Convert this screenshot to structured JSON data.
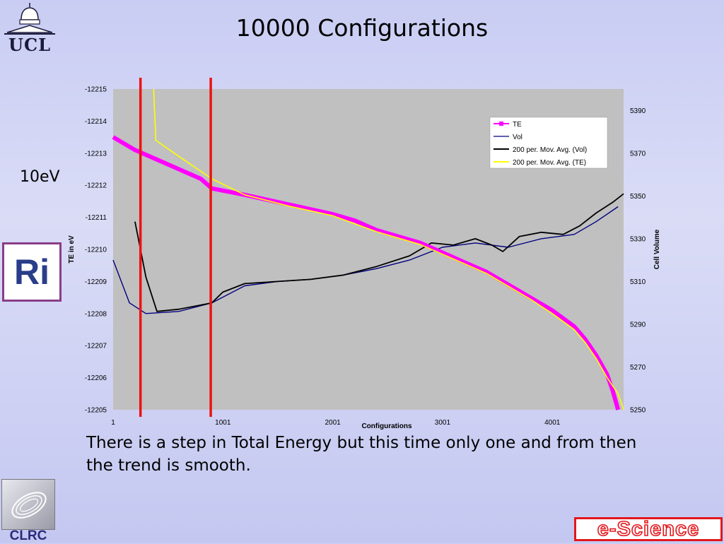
{
  "slide": {
    "title": "10000 Configurations",
    "side_label": "10eV",
    "caption": "There is a step in Total Energy but this time only one and from then the trend is smooth."
  },
  "logos": {
    "ucl": "UCL",
    "ri": "Ri",
    "clrc": "CLRC",
    "escience": "e-Science"
  },
  "colors": {
    "te": "#ff00ff",
    "vol": "#000080",
    "vol_avg": "#000000",
    "te_avg": "#ffff00",
    "marker_lines": "#ee1111",
    "plot_bg": "#c0c0c0"
  },
  "chart_data": {
    "type": "line",
    "title": "",
    "xlabel": "Configurations",
    "ylabel_left": "TE in eV",
    "ylabel_right": "Cell Volume",
    "x_ticks": [
      "1",
      "1001",
      "2001",
      "3001",
      "4001"
    ],
    "x_range": [
      1,
      4650
    ],
    "y_left_ticks": [
      "-12215",
      "-12214",
      "-12213",
      "-12212",
      "-12211",
      "-12210",
      "-12209",
      "-12208",
      "-12207",
      "-12206",
      "-12205"
    ],
    "y_left_range": [
      -12215,
      -12205
    ],
    "y_right_ticks": [
      "5390",
      "5370",
      "5350",
      "5330",
      "5310",
      "5290",
      "5270",
      "5250"
    ],
    "y_right_range": [
      5250,
      5400
    ],
    "legend_position": "top-right",
    "legend": [
      "TE",
      "Vol",
      "200 per. Mov. Avg. (Vol)",
      "200 per. Mov. Avg. (TE)"
    ],
    "vertical_markers_x": [
      250,
      890
    ],
    "series": [
      {
        "name": "TE",
        "axis": "left",
        "x": [
          1,
          100,
          200,
          400,
          600,
          800,
          900,
          1200,
          1600,
          2000,
          2200,
          2400,
          2800,
          3000,
          3200,
          3400,
          3600,
          3800,
          4000,
          4200,
          4300,
          4400,
          4500,
          4550,
          4600
        ],
        "y": [
          -12213.5,
          -12213.3,
          -12213.1,
          -12212.8,
          -12212.5,
          -12212.2,
          -12211.9,
          -12211.7,
          -12211.4,
          -12211.1,
          -12210.9,
          -12210.6,
          -12210.2,
          -12209.9,
          -12209.6,
          -12209.3,
          -12208.9,
          -12208.5,
          -12208.1,
          -12207.6,
          -12207.2,
          -12206.7,
          -12206.1,
          -12205.6,
          -12205.0
        ]
      },
      {
        "name": "Vol",
        "axis": "right",
        "x": [
          1,
          150,
          300,
          600,
          900,
          1200,
          1500,
          1800,
          2100,
          2400,
          2700,
          3000,
          3300,
          3600,
          3900,
          4200,
          4400,
          4600
        ],
        "y": [
          5320,
          5300,
          5295,
          5296,
          5300,
          5308,
          5310,
          5311,
          5313,
          5316,
          5320,
          5326,
          5328,
          5326,
          5330,
          5332,
          5338,
          5345
        ]
      },
      {
        "name": "200 per. Mov. Avg. (Vol)",
        "axis": "right",
        "x": [
          200,
          250,
          300,
          400,
          600,
          800,
          900,
          1000,
          1200,
          1500,
          1800,
          2100,
          2400,
          2700,
          2900,
          3100,
          3300,
          3450,
          3550,
          3700,
          3900,
          4100,
          4250,
          4400,
          4550,
          4650
        ],
        "y": [
          5338,
          5325,
          5312,
          5296,
          5297,
          5299,
          5300,
          5305,
          5309,
          5310,
          5311,
          5313,
          5317,
          5322,
          5328,
          5327,
          5330,
          5327,
          5324,
          5331,
          5333,
          5332,
          5336,
          5342,
          5347,
          5351
        ]
      },
      {
        "name": "200 per. Mov. Avg. (TE)",
        "axis": "left",
        "x": [
          370,
          390,
          600,
          900,
          1200,
          1600,
          2000,
          2400,
          2800,
          3000,
          3200,
          3400,
          3600,
          3800,
          4000,
          4200,
          4300,
          4400,
          4500,
          4600,
          4650
        ],
        "y": [
          -12215,
          -12213.4,
          -12212.9,
          -12212.2,
          -12211.7,
          -12211.35,
          -12211.05,
          -12210.55,
          -12210.15,
          -12209.85,
          -12209.55,
          -12209.25,
          -12208.85,
          -12208.45,
          -12208.0,
          -12207.5,
          -12207.1,
          -12206.6,
          -12206.0,
          -12205.5,
          -12205.0
        ]
      }
    ]
  }
}
